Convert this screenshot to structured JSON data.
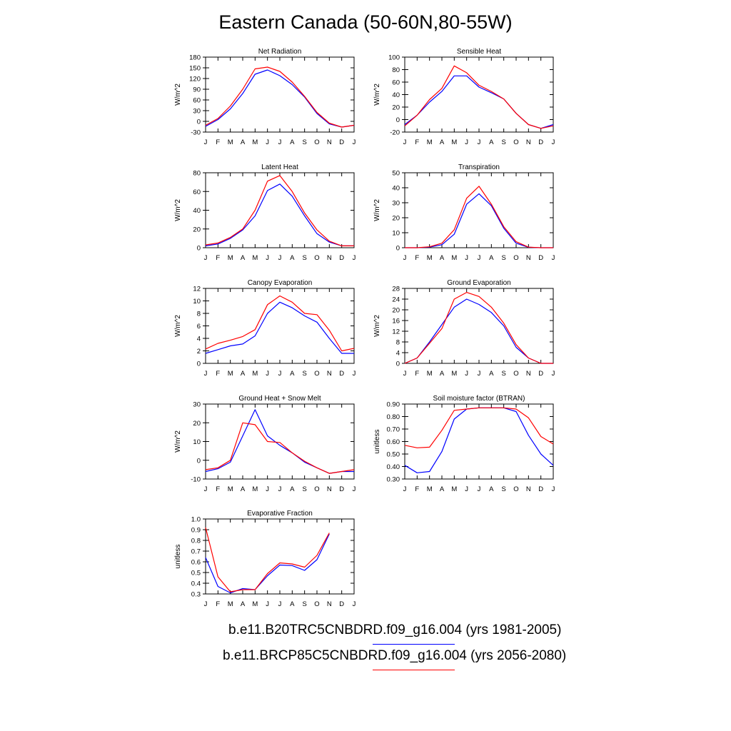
{
  "title": "Eastern Canada (50-60N,80-55W)",
  "colors": {
    "series1": "#0000ff",
    "series2": "#ff0000"
  },
  "legend": {
    "entries": [
      {
        "label": "b.e11.B20TRC5CNBDRD.f09_g16.004 (yrs 1981-2005)",
        "color": "#0000ff"
      },
      {
        "label": "b.e11.BRCP85C5CNBDRD.f09_g16.004 (yrs 2056-2080)",
        "color": "#ff0000"
      }
    ]
  },
  "chart_data": [
    {
      "type": "line",
      "title": "Net Radiation",
      "ylabel": "W/m^2",
      "categories": [
        "J",
        "F",
        "M",
        "A",
        "M",
        "J",
        "J",
        "A",
        "S",
        "O",
        "N",
        "D",
        "J"
      ],
      "ylim": [
        -30,
        180
      ],
      "yticks": [
        -30,
        0,
        30,
        60,
        90,
        120,
        150,
        180
      ],
      "ytick_labels": [
        "-30",
        "0",
        "30",
        "60",
        "90",
        "120",
        "150",
        "180"
      ],
      "series": [
        {
          "values": [
            -14,
            5,
            35,
            78,
            132,
            144,
            128,
            103,
            68,
            22,
            -7,
            -16,
            -11
          ]
        },
        {
          "values": [
            -11,
            8,
            43,
            90,
            147,
            152,
            140,
            110,
            70,
            25,
            -5,
            -16,
            -11
          ]
        }
      ]
    },
    {
      "type": "line",
      "title": "Sensible Heat",
      "ylabel": "W/m^2",
      "categories": [
        "J",
        "F",
        "M",
        "A",
        "M",
        "J",
        "J",
        "A",
        "S",
        "O",
        "N",
        "D",
        "J"
      ],
      "ylim": [
        -20,
        100
      ],
      "yticks": [
        -20,
        0,
        20,
        40,
        60,
        80,
        100
      ],
      "ytick_labels": [
        "-20",
        "0",
        "20",
        "40",
        "60",
        "80",
        "100"
      ],
      "series": [
        {
          "values": [
            -8,
            7,
            28,
            45,
            70,
            70,
            52,
            43,
            33,
            10,
            -8,
            -14,
            -8
          ]
        },
        {
          "values": [
            -10,
            7,
            32,
            50,
            86,
            75,
            55,
            45,
            33,
            10,
            -8,
            -14,
            -10
          ]
        }
      ]
    },
    {
      "type": "line",
      "title": "Latent Heat",
      "ylabel": "W/m^2",
      "categories": [
        "J",
        "F",
        "M",
        "A",
        "M",
        "J",
        "J",
        "A",
        "S",
        "O",
        "N",
        "D",
        "J"
      ],
      "ylim": [
        0,
        80
      ],
      "yticks": [
        0,
        20,
        40,
        60,
        80
      ],
      "ytick_labels": [
        "0",
        "20",
        "40",
        "60",
        "80"
      ],
      "series": [
        {
          "values": [
            2,
            4,
            10,
            19,
            34,
            61,
            68,
            55,
            34,
            15,
            6,
            2,
            2
          ]
        },
        {
          "values": [
            3,
            5,
            11,
            20,
            40,
            71,
            77,
            60,
            37,
            19,
            7,
            2,
            2
          ]
        }
      ]
    },
    {
      "type": "line",
      "title": "Transpiration",
      "ylabel": "W/m^2",
      "categories": [
        "J",
        "F",
        "M",
        "A",
        "M",
        "J",
        "J",
        "A",
        "S",
        "O",
        "N",
        "D",
        "J"
      ],
      "ylim": [
        0,
        50
      ],
      "yticks": [
        0,
        10,
        20,
        30,
        40,
        50
      ],
      "ytick_labels": [
        "0",
        "10",
        "20",
        "30",
        "40",
        "50"
      ],
      "series": [
        {
          "values": [
            0,
            0,
            0.4,
            2,
            9,
            29,
            36,
            28,
            13,
            3,
            0.3,
            0,
            0
          ]
        },
        {
          "values": [
            0,
            0,
            0.6,
            3,
            12,
            33,
            41,
            29,
            14,
            4,
            0.4,
            0,
            0
          ]
        }
      ]
    },
    {
      "type": "line",
      "title": "Canopy Evaporation",
      "ylabel": "W/m^2",
      "categories": [
        "J",
        "F",
        "M",
        "A",
        "M",
        "J",
        "J",
        "A",
        "S",
        "O",
        "N",
        "D",
        "J"
      ],
      "ylim": [
        0,
        12
      ],
      "yticks": [
        0,
        2,
        4,
        6,
        8,
        10,
        12
      ],
      "ytick_labels": [
        "0",
        "2",
        "4",
        "6",
        "8",
        "10",
        "12"
      ],
      "series": [
        {
          "values": [
            1.6,
            2.2,
            2.8,
            3.1,
            4.4,
            8.0,
            9.8,
            8.9,
            7.6,
            6.6,
            4.0,
            1.6,
            1.6
          ]
        },
        {
          "values": [
            2.3,
            3.2,
            3.7,
            4.3,
            5.4,
            9.4,
            10.8,
            9.8,
            8.0,
            7.8,
            5.3,
            2.0,
            2.4
          ]
        }
      ]
    },
    {
      "type": "line",
      "title": "Ground Evaporation",
      "ylabel": "W/m^2",
      "categories": [
        "J",
        "F",
        "M",
        "A",
        "M",
        "J",
        "J",
        "A",
        "S",
        "O",
        "N",
        "D",
        "J"
      ],
      "ylim": [
        0,
        28
      ],
      "yticks": [
        0,
        4,
        8,
        12,
        16,
        20,
        24,
        28
      ],
      "ytick_labels": [
        "0",
        "4",
        "8",
        "12",
        "16",
        "20",
        "24",
        "28"
      ],
      "series": [
        {
          "values": [
            0,
            2,
            8,
            14.5,
            21,
            24,
            22,
            19,
            14,
            6,
            2,
            0,
            0
          ]
        },
        {
          "values": [
            0,
            2,
            7.5,
            13,
            24,
            26.5,
            25,
            21,
            15,
            7,
            2,
            0,
            0
          ]
        }
      ]
    },
    {
      "type": "line",
      "title": "Ground Heat + Snow Melt",
      "ylabel": "W/m^2",
      "categories": [
        "J",
        "F",
        "M",
        "A",
        "M",
        "J",
        "J",
        "A",
        "S",
        "O",
        "N",
        "D",
        "J"
      ],
      "ylim": [
        -10,
        30
      ],
      "yticks": [
        -10,
        0,
        10,
        20,
        30
      ],
      "ytick_labels": [
        "-10",
        "0",
        "10",
        "20",
        "30"
      ],
      "series": [
        {
          "values": [
            -6,
            -4.5,
            -1,
            13,
            27,
            13,
            8,
            4,
            -1,
            -4,
            -7,
            -6,
            -6
          ]
        },
        {
          "values": [
            -5,
            -4,
            0,
            20,
            19,
            10,
            9.5,
            4,
            -0.5,
            -4,
            -7,
            -6,
            -5
          ]
        }
      ]
    },
    {
      "type": "line",
      "title": "Soil moisture factor (BTRAN)",
      "ylabel": "unitless",
      "categories": [
        "J",
        "F",
        "M",
        "A",
        "M",
        "J",
        "J",
        "A",
        "S",
        "O",
        "N",
        "D",
        "J"
      ],
      "ylim": [
        0.3,
        0.9
      ],
      "yticks": [
        0.3,
        0.4,
        0.5,
        0.6,
        0.7,
        0.8,
        0.9
      ],
      "ytick_labels": [
        "0.30",
        "0.40",
        "0.50",
        "0.60",
        "0.70",
        "0.80",
        "0.90"
      ],
      "series": [
        {
          "values": [
            0.41,
            0.35,
            0.36,
            0.52,
            0.78,
            0.86,
            0.87,
            0.87,
            0.87,
            0.84,
            0.65,
            0.5,
            0.41
          ]
        },
        {
          "values": [
            0.57,
            0.55,
            0.555,
            0.69,
            0.85,
            0.86,
            0.87,
            0.87,
            0.87,
            0.86,
            0.79,
            0.64,
            0.58
          ]
        }
      ]
    },
    {
      "type": "line",
      "title": "Evaporative Fraction",
      "ylabel": "unitless",
      "categories": [
        "J",
        "F",
        "M",
        "A",
        "M",
        "J",
        "J",
        "A",
        "S",
        "O",
        "N",
        "D",
        "J"
      ],
      "ylim": [
        0.3,
        1.0
      ],
      "yticks": [
        0.3,
        0.4,
        0.5,
        0.6,
        0.7,
        0.8,
        0.9,
        1.0
      ],
      "ytick_labels": [
        "0.3",
        "0.4",
        "0.5",
        "0.6",
        "0.7",
        "0.8",
        "0.9",
        "1.0"
      ],
      "series": [
        {
          "values": [
            0.64,
            0.37,
            0.31,
            0.35,
            0.34,
            0.47,
            0.57,
            0.565,
            0.52,
            0.62,
            0.86,
            null,
            null
          ]
        },
        {
          "values": [
            0.92,
            0.46,
            0.32,
            0.34,
            0.34,
            0.49,
            0.59,
            0.58,
            0.55,
            0.66,
            0.87,
            null,
            null
          ]
        }
      ]
    }
  ]
}
